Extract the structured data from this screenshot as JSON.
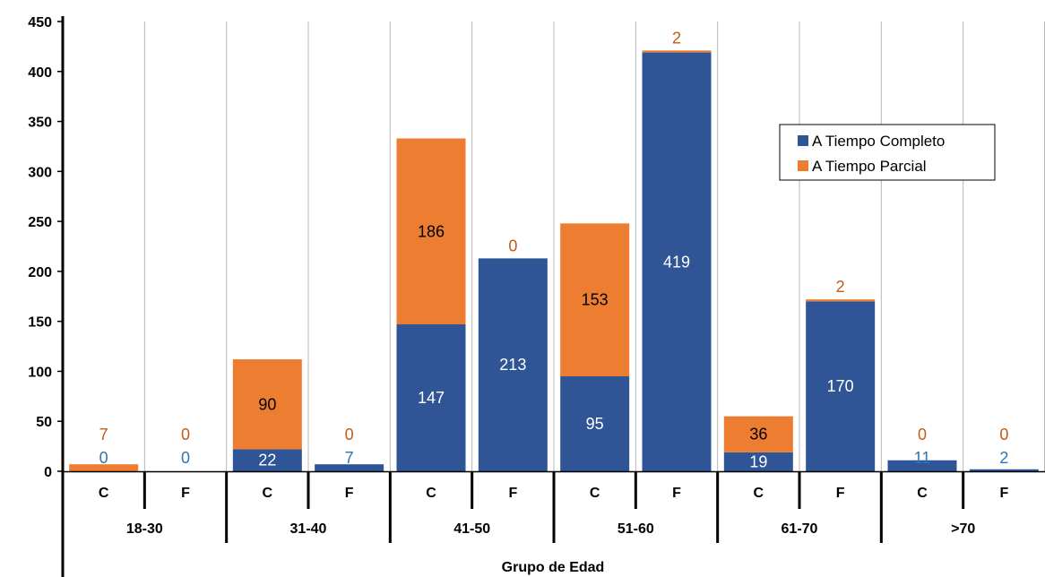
{
  "chart_data": {
    "type": "bar",
    "stacked": true,
    "title": "",
    "xlabel": "Grupo de Edad",
    "ylabel": "",
    "ylim": [
      0,
      450
    ],
    "yticks": [
      0,
      50,
      100,
      150,
      200,
      250,
      300,
      350,
      400,
      450
    ],
    "grid": "vertical lines between categories",
    "legend_position": "top-right",
    "groups": [
      "18-30",
      "31-40",
      "41-50",
      "51-60",
      "61-70",
      ">70"
    ],
    "subcategories": [
      "C",
      "F"
    ],
    "categories": [
      "C",
      "F",
      "C",
      "F",
      "C",
      "F",
      "C",
      "F",
      "C",
      "F",
      "C",
      "F"
    ],
    "series": [
      {
        "name": "A Tiempo Completo",
        "color": "#2F5597",
        "values": [
          0,
          0,
          22,
          7,
          147,
          213,
          95,
          419,
          19,
          170,
          11,
          2
        ]
      },
      {
        "name": "A Tiempo Parcial",
        "color": "#ED7D31",
        "values": [
          7,
          0,
          90,
          0,
          186,
          0,
          153,
          2,
          36,
          2,
          0,
          0
        ]
      }
    ],
    "label_colors": {
      "inside_blue": "#FFFFFF",
      "outside_blue": "#2E75B6",
      "inside_orange": "#000000",
      "outside_orange": "#C55A11"
    }
  }
}
